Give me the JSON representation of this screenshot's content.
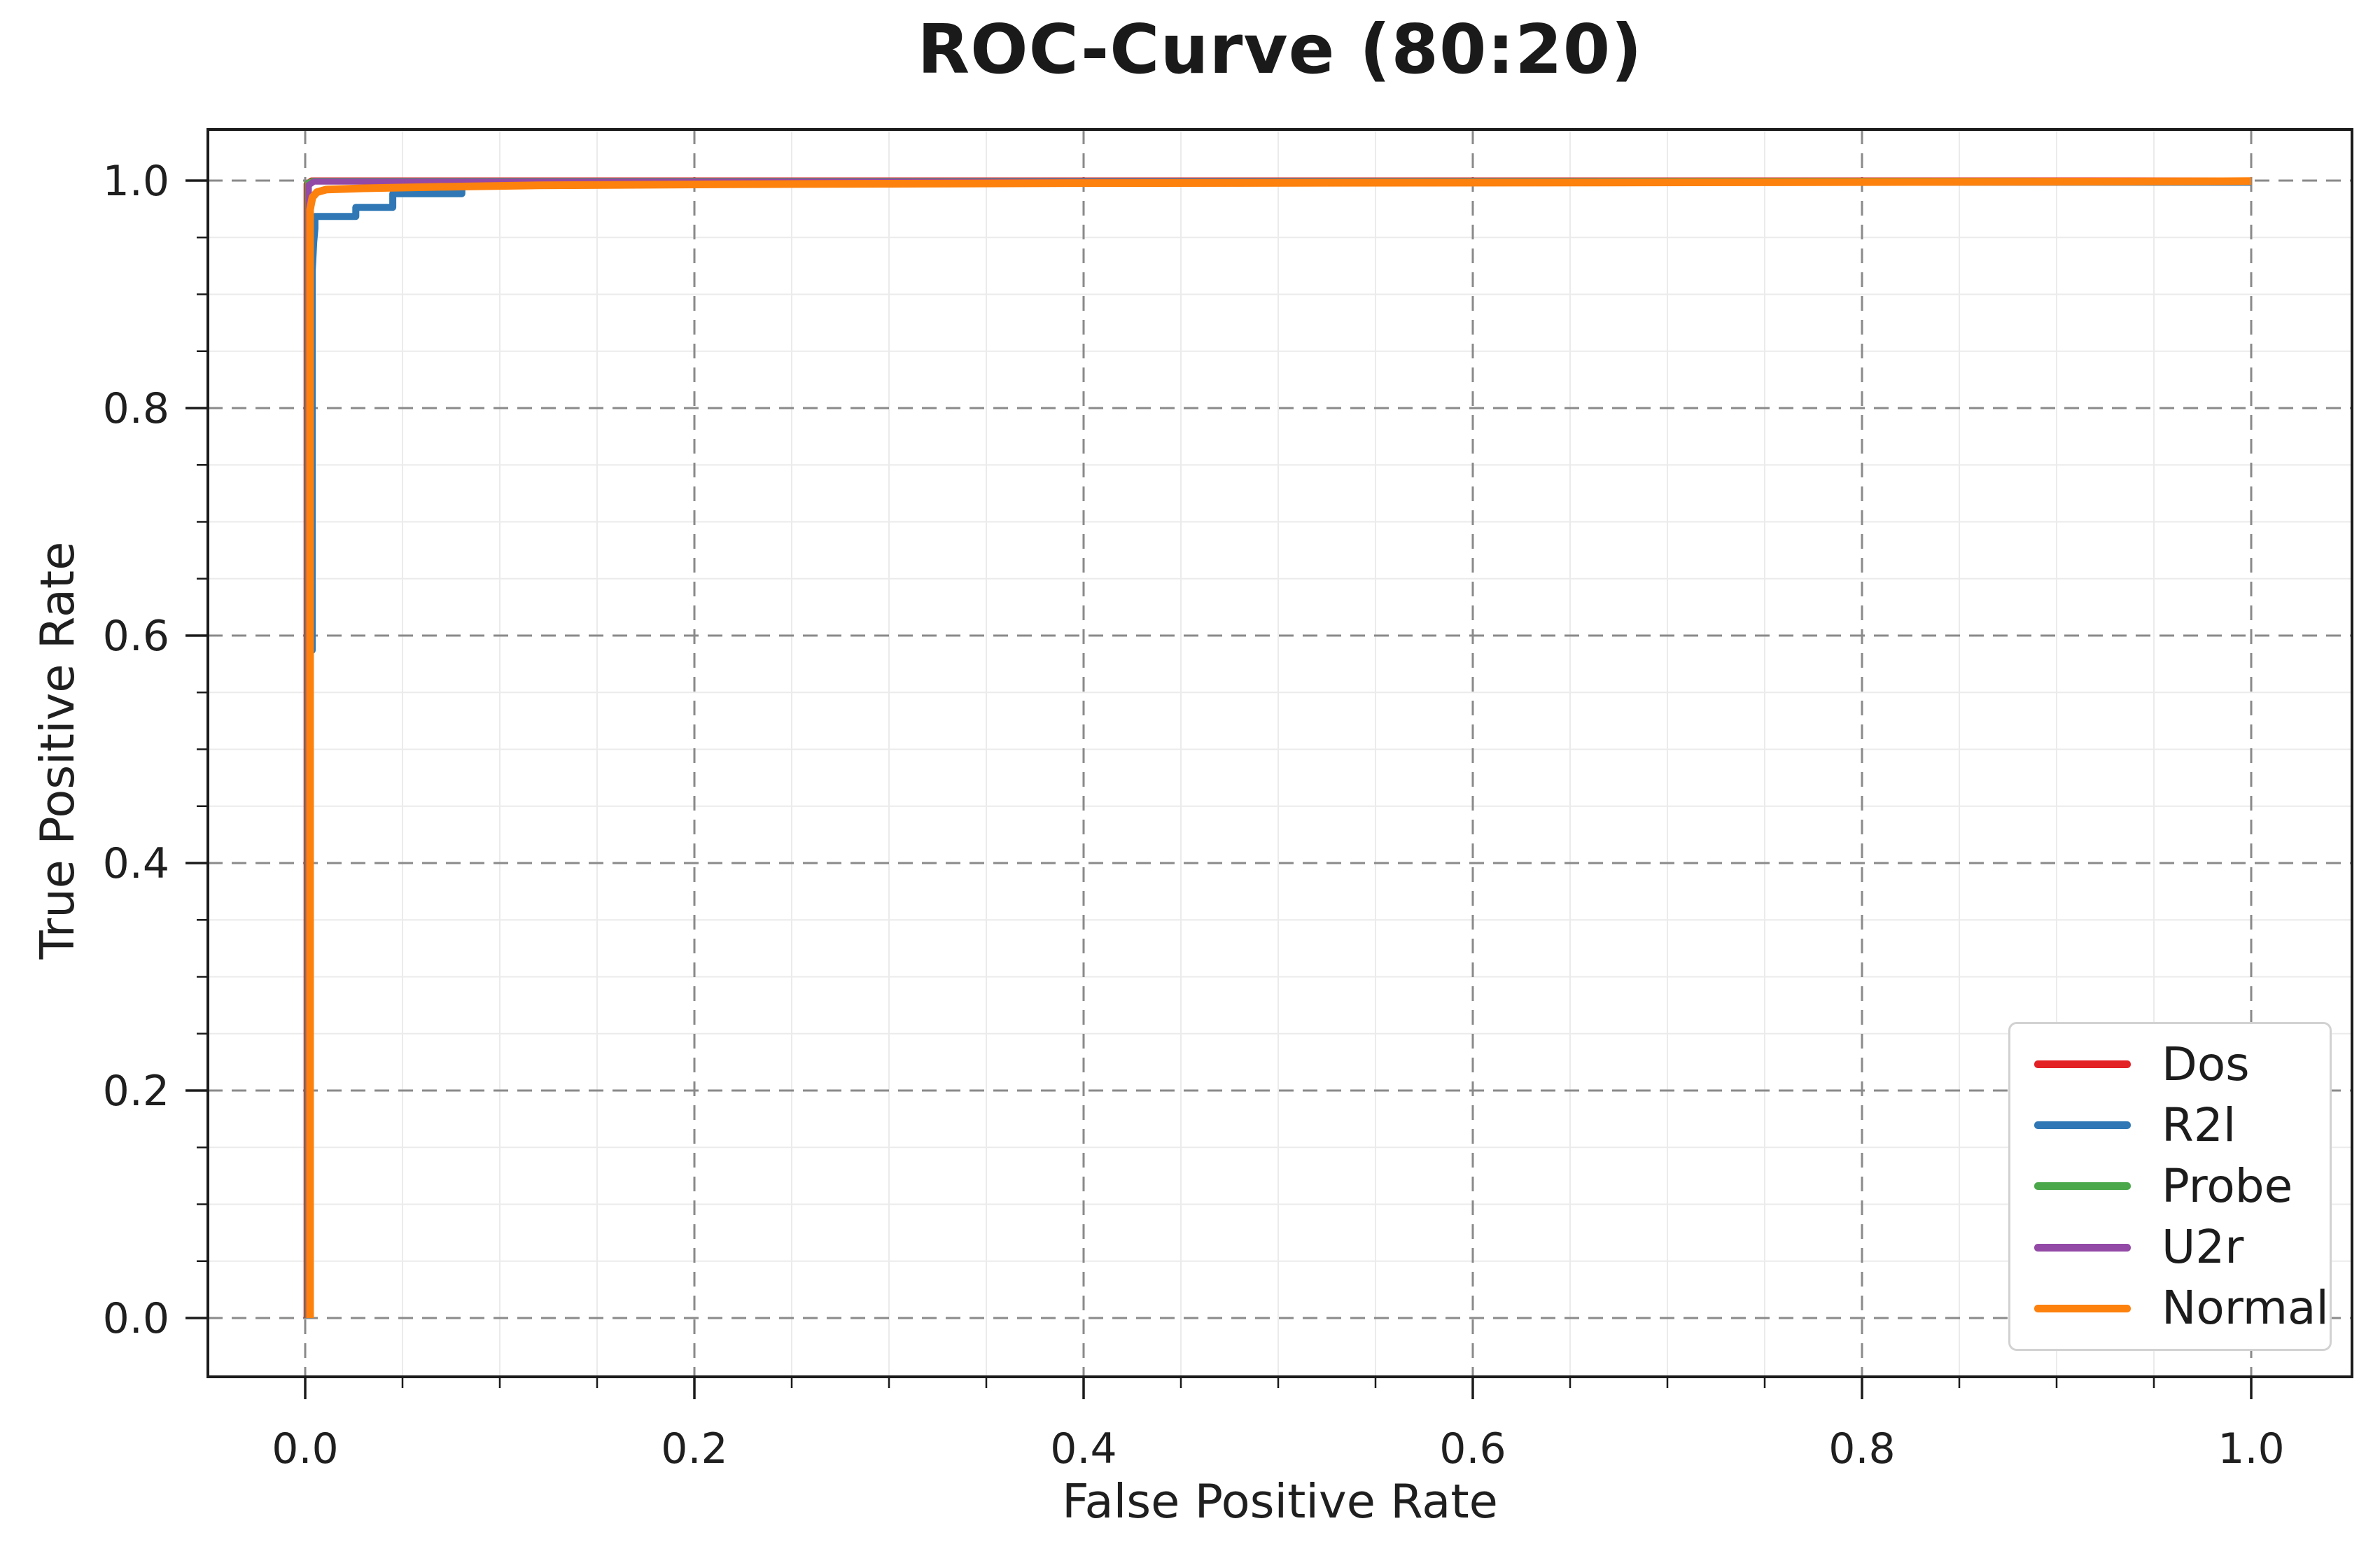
{
  "chart_data": {
    "type": "line",
    "title": "ROC-Curve (80:20)",
    "xlabel": "False Positive Rate",
    "ylabel": "True Positive Rate",
    "xlim": [
      -0.05,
      1.05
    ],
    "ylim": [
      -0.05,
      1.05
    ],
    "x_major_ticks": [
      0.0,
      0.2,
      0.4,
      0.6,
      0.8,
      1.0
    ],
    "x_tick_labels": [
      "0.0",
      "0.2",
      "0.4",
      "0.6",
      "0.8",
      "1.0"
    ],
    "y_major_ticks": [
      0.0,
      0.2,
      0.4,
      0.6,
      0.8,
      1.0
    ],
    "y_tick_labels": [
      "0.0",
      "0.2",
      "0.4",
      "0.6",
      "0.8",
      "1.0"
    ],
    "minor_tick_step": 0.05,
    "grid": {
      "major_on": true,
      "minor_on": true,
      "major_style": "dashed",
      "minor_style": "solid",
      "major_color": "#8a8a8a",
      "minor_color": "#ebebeb"
    },
    "legend": {
      "position": "lower right"
    },
    "series": [
      {
        "name": "Dos",
        "color": "#e32226",
        "points": [
          [
            0.0008,
            0
          ],
          [
            0.0008,
            0.997
          ],
          [
            0.0032,
            1
          ],
          [
            1,
            1
          ]
        ]
      },
      {
        "name": "R2l",
        "color": "#2f78b5",
        "points": [
          [
            0.002,
            0
          ],
          [
            0.002,
            0.587
          ],
          [
            0.0036,
            0.587
          ],
          [
            0.0036,
            0.92
          ],
          [
            0.0044,
            0.946
          ],
          [
            0.005,
            0.958
          ],
          [
            0.005,
            0.9685
          ],
          [
            0.026,
            0.9685
          ],
          [
            0.026,
            0.9765
          ],
          [
            0.045,
            0.9765
          ],
          [
            0.045,
            0.9885
          ],
          [
            0.0805,
            0.9885
          ],
          [
            0.0805,
            0.9952
          ],
          [
            0.0935,
            0.9952
          ],
          [
            0.0935,
            0.998
          ],
          [
            0.3,
            0.9985
          ],
          [
            1,
            0.9985
          ]
        ]
      },
      {
        "name": "Probe",
        "color": "#4aa84a",
        "points": [
          [
            0.0012,
            0
          ],
          [
            0.0012,
            0.998
          ],
          [
            0.004,
            1
          ],
          [
            1,
            1
          ]
        ]
      },
      {
        "name": "U2r",
        "color": "#9349a6",
        "points": [
          [
            0.0018,
            0
          ],
          [
            0.0018,
            0.996
          ],
          [
            0.0045,
            0.9992
          ],
          [
            1,
            0.9992
          ]
        ]
      },
      {
        "name": "Normal",
        "color": "#fd810d",
        "points": [
          [
            0.0025,
            0
          ],
          [
            0.0025,
            0.9745
          ],
          [
            0.0037,
            0.9853
          ],
          [
            0.006,
            0.9898
          ],
          [
            0.011,
            0.9922
          ],
          [
            0.03,
            0.9932
          ],
          [
            0.07,
            0.9945
          ],
          [
            0.12,
            0.9958
          ],
          [
            0.22,
            0.9968
          ],
          [
            0.4,
            0.9978
          ],
          [
            0.75,
            0.9985
          ],
          [
            0.95,
            0.9992
          ],
          [
            1,
            0.9995
          ]
        ]
      }
    ]
  }
}
